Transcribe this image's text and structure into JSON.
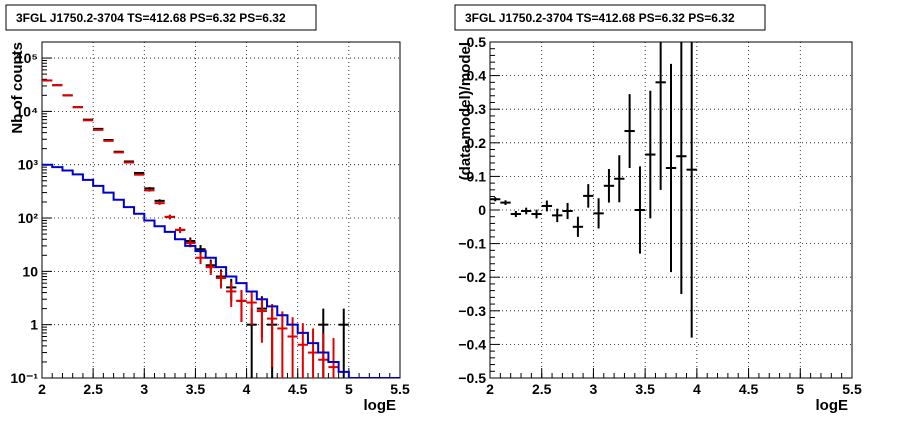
{
  "chart_data": [
    {
      "type": "histogram",
      "title": "3FGL J1750.2-3704 TS=412.68 PS=6.32 PS=6.32",
      "xlabel": "logE",
      "ylabel": "Nb of counts",
      "xlim": [
        2,
        5.5
      ],
      "ylim": [
        0.1,
        200000
      ],
      "yscale": "log",
      "grid": true,
      "x_ticks": [
        "2",
        "2.5",
        "3",
        "3.5",
        "4",
        "4.5",
        "5",
        "5.5"
      ],
      "y_ticks": [
        "10⁻¹",
        "1",
        "10",
        "10²",
        "10³",
        "10⁴",
        "10⁵"
      ],
      "bin_edges": [
        2.0,
        2.1,
        2.2,
        2.3,
        2.4,
        2.5,
        2.6,
        2.7,
        2.8,
        2.9,
        3.0,
        3.1,
        3.2,
        3.3,
        3.4,
        3.5,
        3.6,
        3.7,
        3.8,
        3.9,
        4.0,
        4.1,
        4.2,
        4.3,
        4.4,
        4.5,
        4.6,
        4.7,
        4.8,
        4.9,
        5.0,
        5.1,
        5.2,
        5.3,
        5.4,
        5.5
      ],
      "series": [
        {
          "type": "points",
          "color": "#000000",
          "x": [
            2.05,
            2.15,
            2.25,
            2.35,
            2.45,
            2.55,
            2.65,
            2.75,
            2.85,
            2.95,
            3.05,
            3.15,
            3.25,
            3.35,
            3.45,
            3.55,
            3.65,
            3.75,
            3.85,
            3.95,
            4.05,
            4.15,
            4.25,
            4.35,
            4.45,
            4.55,
            4.65,
            4.75,
            4.85,
            4.95
          ],
          "y": [
            38000,
            31000,
            20000,
            12000,
            7000,
            4700,
            2900,
            1750,
            1150,
            700,
            360,
            210,
            105,
            60,
            37,
            26,
            13,
            8,
            5,
            2.8,
            1,
            2,
            1,
            0,
            0,
            0,
            0,
            1,
            0,
            1
          ]
        },
        {
          "type": "points",
          "color": "#e00000",
          "x": [
            2.05,
            2.15,
            2.25,
            2.35,
            2.45,
            2.55,
            2.65,
            2.75,
            2.85,
            2.95,
            3.05,
            3.15,
            3.25,
            3.35,
            3.45,
            3.55,
            3.65,
            3.75,
            3.85,
            3.95,
            4.05,
            4.15,
            4.25,
            4.35,
            4.45,
            4.55,
            4.65,
            4.75,
            4.85
          ],
          "y": [
            38000,
            31000,
            20000,
            12000,
            6800,
            4500,
            2800,
            1700,
            1100,
            650,
            330,
            190,
            105,
            60,
            34,
            18,
            12,
            7.5,
            4.2,
            2.8,
            2.6,
            1.8,
            1.3,
            0.85,
            0.6,
            0.42,
            0.3,
            0.22,
            0.16
          ]
        },
        {
          "type": "step",
          "color": "#0000cc",
          "y": [
            1000,
            900,
            780,
            660,
            520,
            400,
            300,
            220,
            160,
            120,
            90,
            70,
            55,
            40,
            30,
            24,
            18,
            12,
            8,
            6,
            4.2,
            3,
            2.2,
            1.5,
            1,
            0.7,
            0.45,
            0.3,
            0.2,
            0.13,
            0.1,
            0.1,
            0.1,
            0.1,
            0.1
          ]
        }
      ]
    },
    {
      "type": "scatter",
      "title": "3FGL J1750.2-3704 TS=412.68 PS=6.32 PS=6.32",
      "xlabel": "logE",
      "ylabel": "(data-model)/model",
      "xlim": [
        2,
        5.5
      ],
      "ylim": [
        -0.5,
        0.5
      ],
      "grid": true,
      "x_ticks": [
        "2",
        "2.5",
        "3",
        "3.5",
        "4",
        "4.5",
        "5",
        "5.5"
      ],
      "y_ticks": [
        "−0.5",
        "−0.4",
        "−0.3",
        "−0.2",
        "−0.1",
        "0",
        "0.1",
        "0.2",
        "0.3",
        "0.4",
        "0.5"
      ],
      "series": [
        {
          "color": "#000000",
          "x": [
            2.05,
            2.15,
            2.25,
            2.35,
            2.45,
            2.55,
            2.65,
            2.75,
            2.85,
            2.95,
            3.05,
            3.15,
            3.25,
            3.35,
            3.45,
            3.55,
            3.65,
            3.75,
            3.85,
            3.95
          ],
          "y": [
            0.032,
            0.022,
            -0.012,
            -0.003,
            -0.012,
            0.012,
            -0.016,
            -0.003,
            -0.05,
            0.042,
            -0.01,
            0.072,
            0.093,
            0.235,
            0.0,
            0.165,
            0.38,
            0.125,
            0.16,
            0.12
          ],
          "yerr": [
            0.006,
            0.007,
            0.009,
            0.01,
            0.013,
            0.016,
            0.02,
            0.024,
            0.03,
            0.035,
            0.045,
            0.05,
            0.07,
            0.11,
            0.13,
            0.19,
            0.32,
            0.31,
            0.41,
            0.5
          ]
        }
      ]
    }
  ]
}
